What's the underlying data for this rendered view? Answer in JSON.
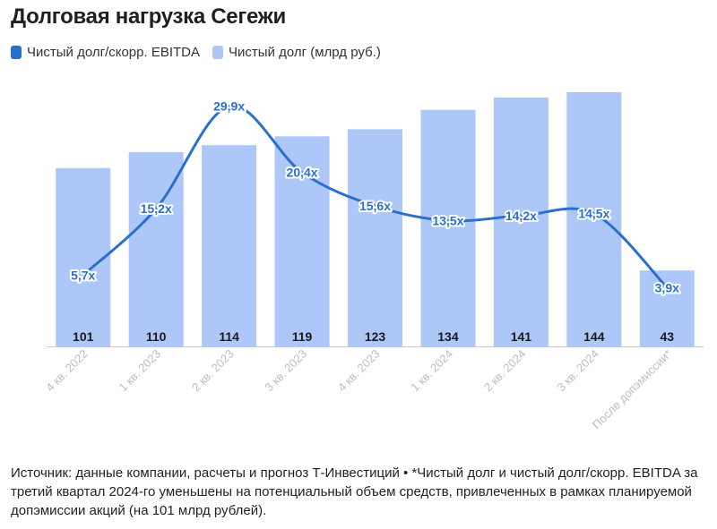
{
  "title": "Долговая нагрузка Сегежи",
  "legend": {
    "line_label": "Чистый долг/скорр. EBITDA",
    "bar_label": "Чистый долг (млрд руб.)"
  },
  "colors": {
    "bar": "#adc8f8",
    "line": "#2b6fce",
    "axis": "#c8c8c8",
    "tick_text": "#bdbdbd"
  },
  "chart_data": {
    "type": "bar",
    "categories": [
      "4 кв. 2022",
      "1 кв. 2023",
      "2 кв. 2023",
      "3 кв. 2023",
      "4 кв. 2023",
      "1 кв. 2024",
      "2 кв. 2024",
      "3 кв. 2024",
      "После допэмиссии*"
    ],
    "series": [
      {
        "name": "Чистый долг (млрд руб.)",
        "type": "bar",
        "values": [
          101,
          110,
          114,
          119,
          123,
          134,
          141,
          144,
          43
        ],
        "labels": [
          "101",
          "110",
          "114",
          "119",
          "123",
          "134",
          "141",
          "144",
          "43"
        ]
      },
      {
        "name": "Чистый долг/скорр. EBITDA",
        "type": "line",
        "values": [
          5.7,
          15.2,
          29.9,
          20.4,
          15.6,
          13.5,
          14.2,
          14.5,
          3.9
        ],
        "labels": [
          "5,7x",
          "15,2x",
          "29,9x",
          "20,4x",
          "15,6x",
          "13,5x",
          "14,2x",
          "14,5x",
          "3,9x"
        ]
      }
    ],
    "grid": false,
    "legend_position": "top-left"
  },
  "footnote": "Источник: данные компании, расчеты и прогноз Т-Инвестиций • *Чистый долг и чистый долг/скорр. EBITDA за третий квартал 2024-го уменьшены на потенциальный объем средств, привлеченных в рамках планируемой допэмиссии акций (на 101 млрд рублей)."
}
